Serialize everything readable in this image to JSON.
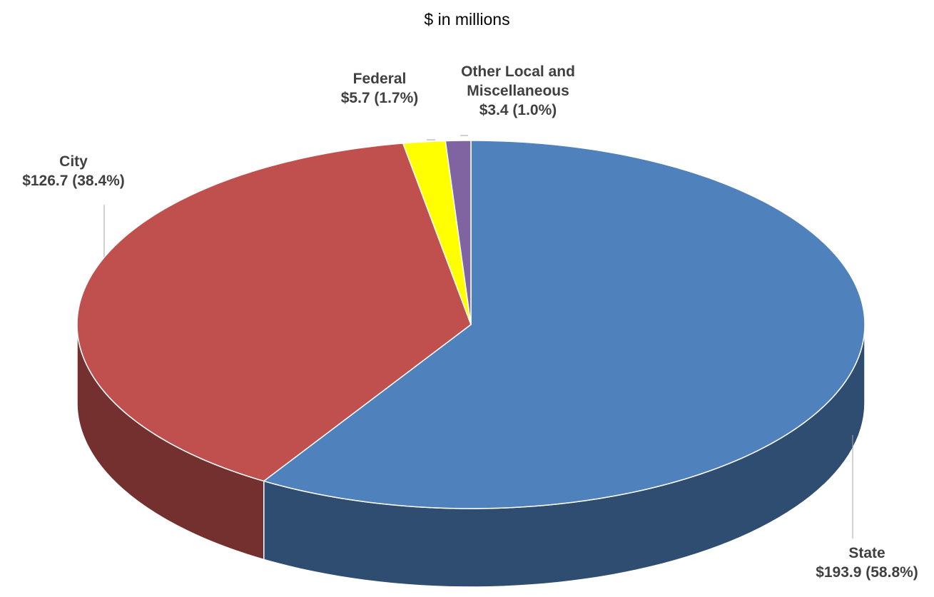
{
  "chart_data": {
    "type": "pie",
    "title": "$ in millions",
    "categories": [
      "State",
      "City",
      "Federal",
      "Other Local and Miscellaneous"
    ],
    "values": [
      193.9,
      126.7,
      5.7,
      3.4
    ],
    "value_labels": [
      "$193.9 (58.8%)",
      "$126.7 (38.4%)",
      "$5.7 (1.7%)",
      "$3.4 (1.0%)"
    ],
    "colors": [
      "#4f81bd",
      "#c0504d",
      "#ffff00",
      "#8064a2"
    ]
  }
}
